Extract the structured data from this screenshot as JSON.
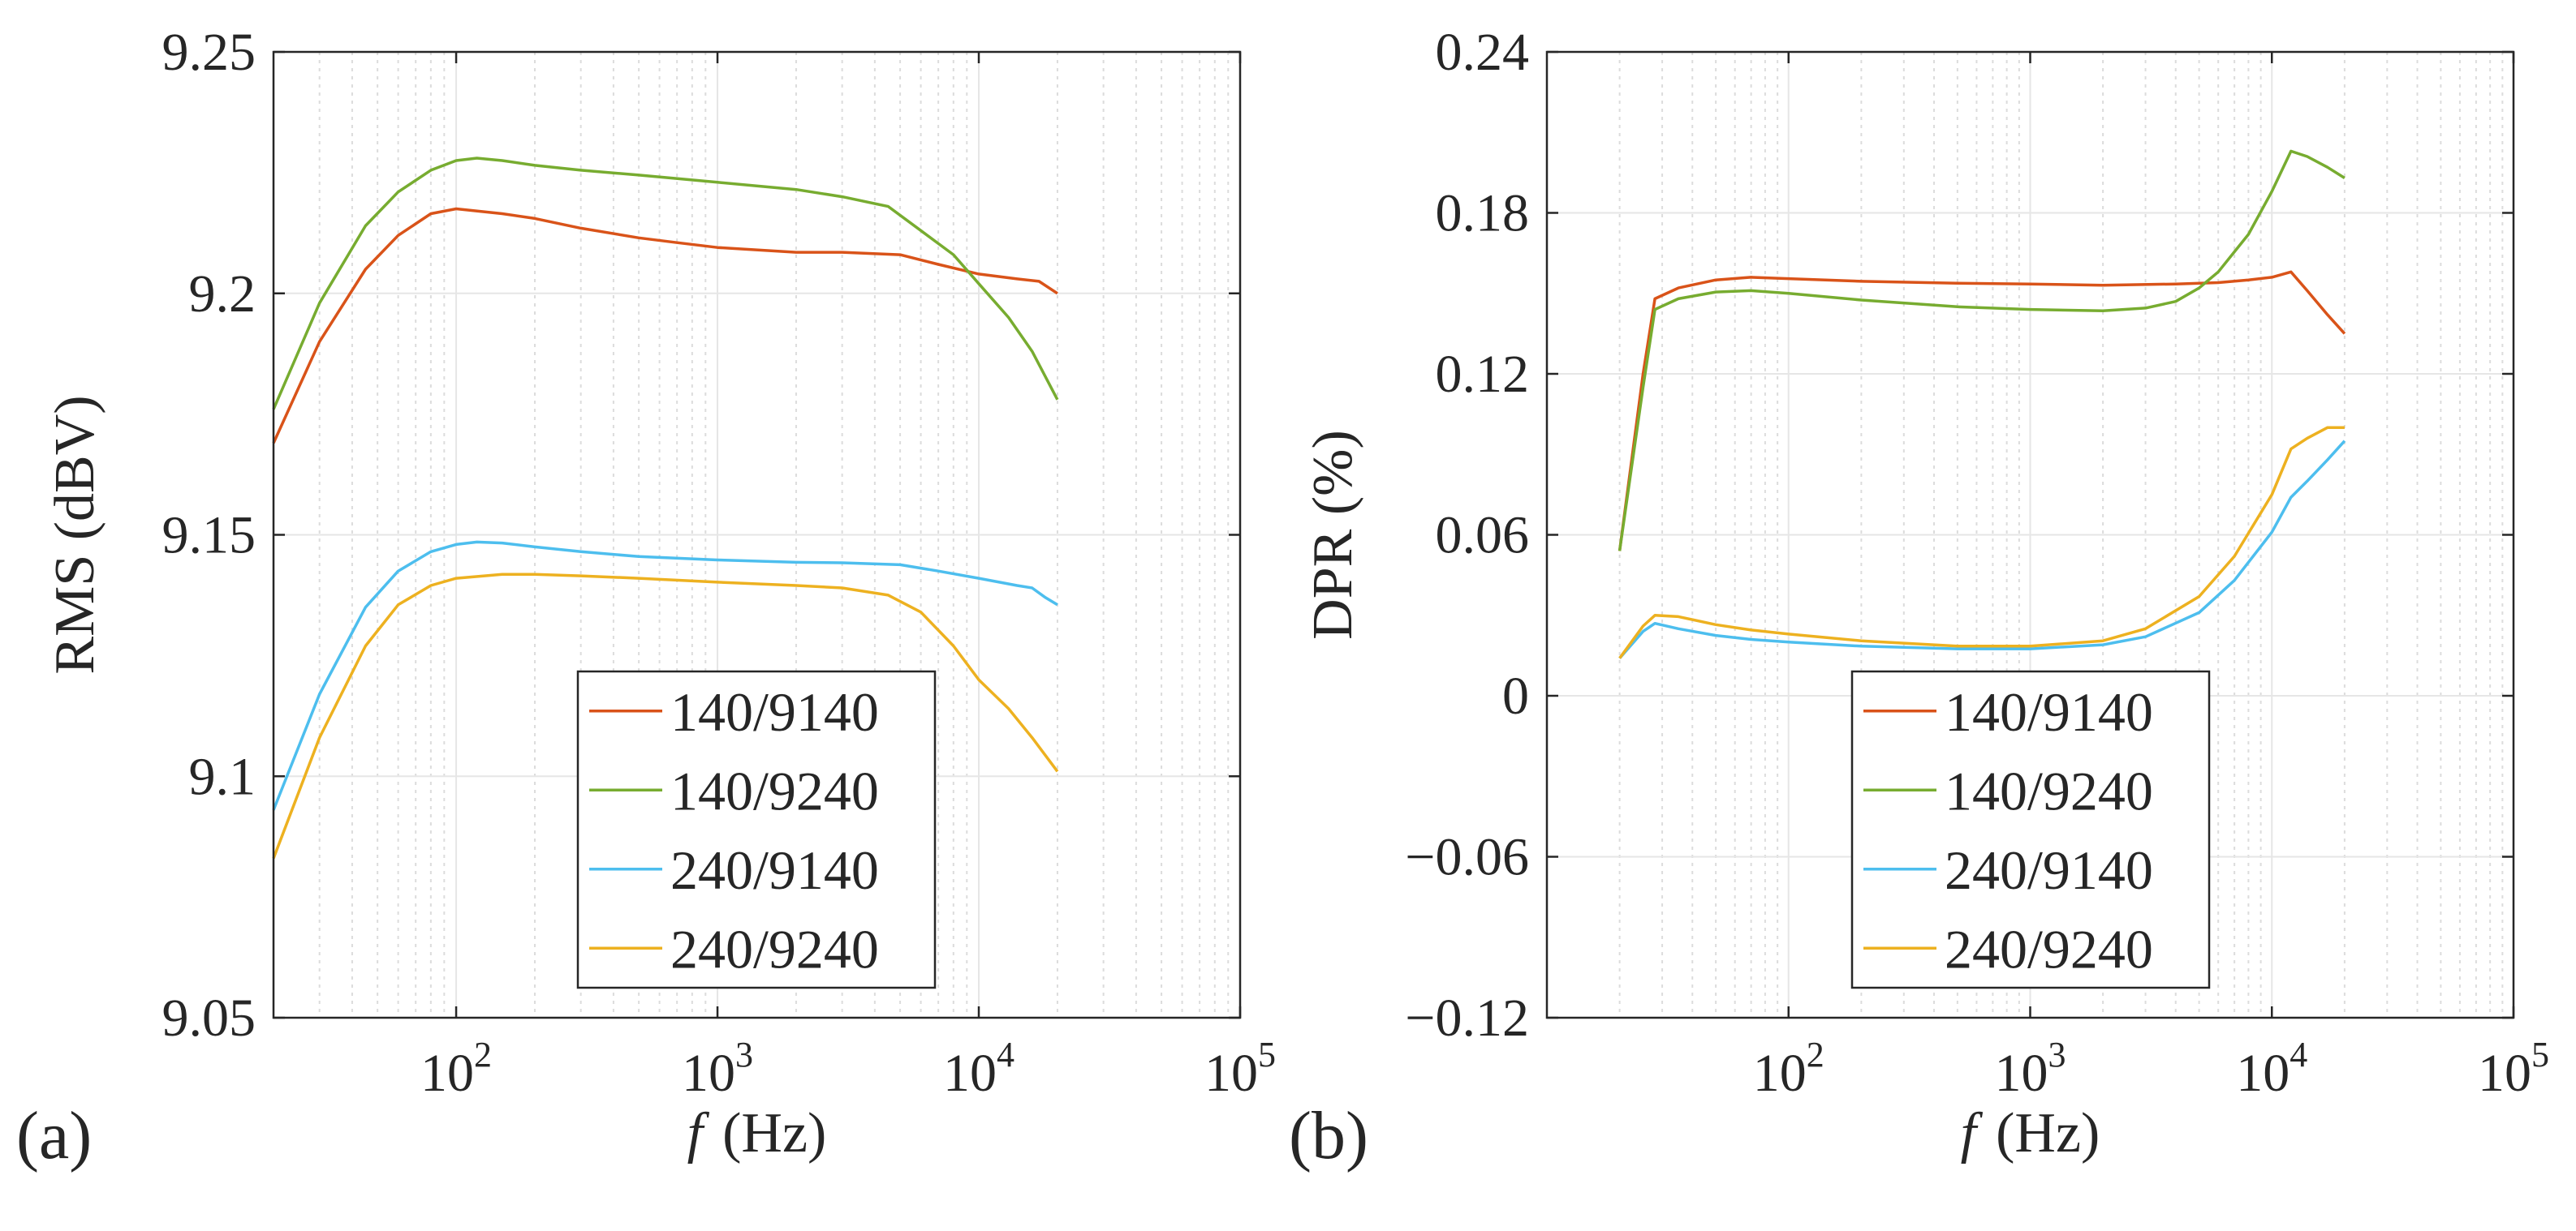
{
  "figure": {
    "panels": [
      "(a)",
      "(b)"
    ]
  },
  "chart_data": [
    {
      "type": "line",
      "panel_label": "(a)",
      "title": "",
      "xlabel": {
        "var": "f",
        "unit": "(Hz)"
      },
      "ylabel": "RMS (dBV)",
      "xscale": "log",
      "xlim": [
        20,
        100000
      ],
      "ylim": [
        9.05,
        9.25
      ],
      "x_ticks": [
        {
          "value": 100,
          "base": "10",
          "exp": "2"
        },
        {
          "value": 1000,
          "base": "10",
          "exp": "3"
        },
        {
          "value": 10000,
          "base": "10",
          "exp": "4"
        },
        {
          "value": 100000,
          "base": "10",
          "exp": "5"
        }
      ],
      "y_ticks": [
        {
          "value": 9.05,
          "label": "9.05"
        },
        {
          "value": 9.1,
          "label": "9.1"
        },
        {
          "value": 9.15,
          "label": "9.15"
        },
        {
          "value": 9.2,
          "label": "9.2"
        },
        {
          "value": 9.25,
          "label": "9.25"
        }
      ],
      "grid": true,
      "legend_position": "bottom-right",
      "series": [
        {
          "name": "140/9140",
          "color": "#D95319",
          "x": [
            20,
            30,
            45,
            60,
            80,
            100,
            150,
            200,
            300,
            500,
            700,
            1000,
            2000,
            3000,
            5000,
            7000,
            10000,
            14000,
            17000,
            20000
          ],
          "y": [
            9.169,
            9.19,
            9.205,
            9.212,
            9.2165,
            9.2175,
            9.2165,
            9.2155,
            9.2135,
            9.2115,
            9.2105,
            9.2095,
            9.2085,
            9.2085,
            9.208,
            9.206,
            9.204,
            9.203,
            9.2025,
            9.2
          ]
        },
        {
          "name": "140/9240",
          "color": "#77AC30",
          "x": [
            20,
            30,
            45,
            60,
            80,
            100,
            120,
            150,
            200,
            300,
            500,
            1000,
            2000,
            3000,
            4500,
            6000,
            8000,
            10000,
            13000,
            16000,
            20000
          ],
          "y": [
            9.176,
            9.198,
            9.214,
            9.221,
            9.2255,
            9.2275,
            9.228,
            9.2275,
            9.2265,
            9.2255,
            9.2245,
            9.223,
            9.2215,
            9.22,
            9.218,
            9.213,
            9.208,
            9.202,
            9.195,
            9.188,
            9.178
          ]
        },
        {
          "name": "240/9140",
          "color": "#4DBEEE",
          "x": [
            20,
            30,
            45,
            60,
            80,
            100,
            120,
            150,
            200,
            300,
            500,
            1000,
            2000,
            3000,
            5000,
            7000,
            10000,
            14000,
            16000,
            18000,
            20000
          ],
          "y": [
            9.093,
            9.117,
            9.135,
            9.1425,
            9.1465,
            9.148,
            9.1485,
            9.1483,
            9.1475,
            9.1465,
            9.1455,
            9.1448,
            9.1443,
            9.1442,
            9.1438,
            9.1425,
            9.141,
            9.1395,
            9.139,
            9.137,
            9.1355
          ]
        },
        {
          "name": "240/9240",
          "color": "#EDB120",
          "x": [
            20,
            30,
            45,
            60,
            80,
            100,
            150,
            200,
            300,
            500,
            1000,
            2000,
            3000,
            4500,
            6000,
            8000,
            10000,
            13000,
            16000,
            20000
          ],
          "y": [
            9.083,
            9.108,
            9.127,
            9.1355,
            9.1395,
            9.141,
            9.1418,
            9.1418,
            9.1415,
            9.141,
            9.1402,
            9.1395,
            9.139,
            9.1375,
            9.134,
            9.127,
            9.12,
            9.114,
            9.108,
            9.101
          ]
        }
      ],
      "legend": [
        "140/9140",
        "140/9240",
        "240/9140",
        "240/9240"
      ]
    },
    {
      "type": "line",
      "panel_label": "(b)",
      "title": "",
      "xlabel": {
        "var": "f",
        "unit": "(Hz)"
      },
      "ylabel": "DPR (%)",
      "xscale": "log",
      "xlim": [
        10,
        100000
      ],
      "ylim": [
        -0.12,
        0.24
      ],
      "x_ticks": [
        {
          "value": 100,
          "base": "10",
          "exp": "2"
        },
        {
          "value": 1000,
          "base": "10",
          "exp": "3"
        },
        {
          "value": 10000,
          "base": "10",
          "exp": "4"
        },
        {
          "value": 100000,
          "base": "10",
          "exp": "5"
        }
      ],
      "y_ticks": [
        {
          "value": -0.12,
          "label": "−0.12"
        },
        {
          "value": -0.06,
          "label": "−0.06"
        },
        {
          "value": 0,
          "label": "0"
        },
        {
          "value": 0.06,
          "label": "0.06"
        },
        {
          "value": 0.12,
          "label": "0.12"
        },
        {
          "value": 0.18,
          "label": "0.18"
        },
        {
          "value": 0.24,
          "label": "0.24"
        }
      ],
      "grid": true,
      "legend_position": "bottom-right",
      "series": [
        {
          "name": "140/9140",
          "color": "#D95319",
          "x": [
            20,
            25,
            28,
            35,
            50,
            70,
            100,
            200,
            500,
            1000,
            2000,
            4000,
            6000,
            8000,
            10000,
            12000,
            14000,
            17000,
            20000
          ],
          "y": [
            0.054,
            0.12,
            0.148,
            0.152,
            0.155,
            0.156,
            0.1555,
            0.1545,
            0.1538,
            0.1535,
            0.153,
            0.1535,
            0.154,
            0.155,
            0.156,
            0.158,
            0.151,
            0.142,
            0.135
          ]
        },
        {
          "name": "140/9240",
          "color": "#77AC30",
          "x": [
            20,
            25,
            28,
            35,
            50,
            70,
            100,
            200,
            500,
            1000,
            2000,
            3000,
            4000,
            5000,
            6000,
            8000,
            10000,
            12000,
            14000,
            17000,
            20000
          ],
          "y": [
            0.054,
            0.115,
            0.144,
            0.148,
            0.1505,
            0.151,
            0.15,
            0.1475,
            0.145,
            0.144,
            0.1435,
            0.1445,
            0.147,
            0.152,
            0.158,
            0.172,
            0.188,
            0.203,
            0.201,
            0.197,
            0.193
          ]
        },
        {
          "name": "240/9140",
          "color": "#4DBEEE",
          "x": [
            20,
            25,
            28,
            35,
            50,
            70,
            100,
            200,
            500,
            1000,
            2000,
            3000,
            5000,
            7000,
            10000,
            12000,
            14000,
            17000,
            20000
          ],
          "y": [
            0.014,
            0.024,
            0.027,
            0.025,
            0.0225,
            0.021,
            0.02,
            0.0185,
            0.0175,
            0.0175,
            0.019,
            0.022,
            0.031,
            0.043,
            0.061,
            0.074,
            0.08,
            0.088,
            0.095
          ]
        },
        {
          "name": "240/9240",
          "color": "#EDB120",
          "x": [
            20,
            25,
            28,
            35,
            50,
            70,
            100,
            200,
            500,
            1000,
            2000,
            3000,
            5000,
            7000,
            10000,
            12000,
            14000,
            17000,
            20000
          ],
          "y": [
            0.014,
            0.026,
            0.03,
            0.0295,
            0.0265,
            0.0245,
            0.023,
            0.0205,
            0.0185,
            0.0185,
            0.0205,
            0.025,
            0.037,
            0.052,
            0.075,
            0.092,
            0.096,
            0.1,
            0.1
          ]
        }
      ],
      "legend": [
        "140/9140",
        "140/9240",
        "240/9140",
        "240/9240"
      ]
    }
  ]
}
